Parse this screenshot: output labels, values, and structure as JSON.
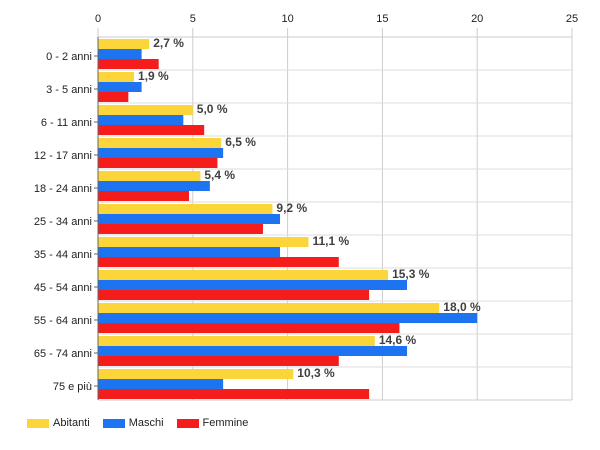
{
  "chart_data": {
    "type": "bar",
    "orientation": "horizontal",
    "categories": [
      "0 - 2 anni",
      "3 - 5 anni",
      "6 - 11 anni",
      "12 - 17 anni",
      "18 - 24 anni",
      "25 - 34 anni",
      "35 - 44 anni",
      "45 - 54 anni",
      "55 - 64 anni",
      "65 - 74 anni",
      "75 e più"
    ],
    "series": [
      {
        "name": "Abitanti",
        "color": "#fbd53a",
        "values": [
          2.7,
          1.9,
          5.0,
          6.5,
          5.4,
          9.2,
          11.1,
          15.3,
          18.0,
          14.6,
          10.3
        ],
        "labels": [
          "2,7 %",
          "1,9 %",
          "5,0 %",
          "6,5 %",
          "5,4 %",
          "9,2 %",
          "11,1 %",
          "15,3 %",
          "18,0 %",
          "14,6 %",
          "10,3 %"
        ]
      },
      {
        "name": "Maschi",
        "color": "#1e73f0",
        "values": [
          2.3,
          2.3,
          4.5,
          6.6,
          5.9,
          9.6,
          9.6,
          16.3,
          20.0,
          16.3,
          6.6
        ]
      },
      {
        "name": "Femmine",
        "color": "#f51c1c",
        "values": [
          3.2,
          1.6,
          5.6,
          6.3,
          4.8,
          8.7,
          12.7,
          14.3,
          15.9,
          12.7,
          14.3
        ]
      }
    ],
    "xticks": [
      "0",
      "5",
      "10",
      "15",
      "20",
      "25"
    ],
    "xlim": [
      0,
      25
    ],
    "grid": true,
    "legend_position": "bottom-left"
  }
}
